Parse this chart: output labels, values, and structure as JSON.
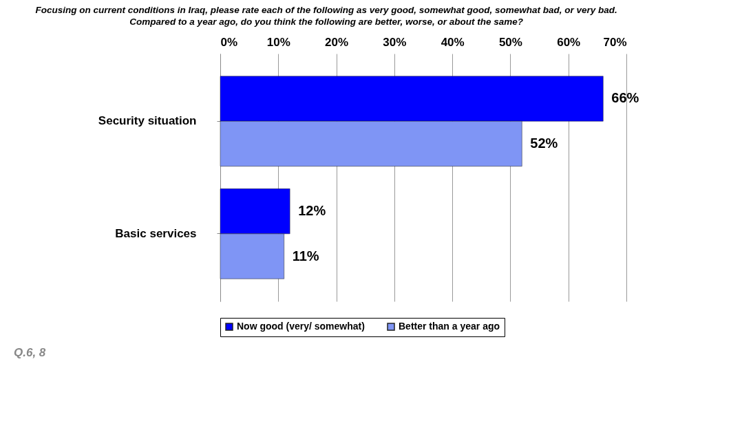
{
  "chart_data": {
    "type": "bar",
    "orientation": "horizontal",
    "title": "Focusing on current conditions in Iraq, please rate each of the following as very good, somewhat good, somewhat bad, or very bad.",
    "subtitle": "Compared to a year ago, do you think the following are better, worse, or about the same?",
    "categories": [
      "Security situation",
      "Basic services"
    ],
    "series": [
      {
        "name": "Now good (very/ somewhat)",
        "color": "#0000ff",
        "values": [
          66,
          12
        ],
        "value_labels": [
          "66%",
          "12%"
        ]
      },
      {
        "name": "Better than a year ago",
        "color": "#7f95f5",
        "values": [
          52,
          11
        ],
        "value_labels": [
          "52%",
          "11%"
        ]
      }
    ],
    "xlim": [
      0,
      70
    ],
    "xticks": [
      {
        "value": 0,
        "label": "0%"
      },
      {
        "value": 10,
        "label": "10%"
      },
      {
        "value": 20,
        "label": "20%"
      },
      {
        "value": 30,
        "label": "30%"
      },
      {
        "value": 40,
        "label": "40%"
      },
      {
        "value": 50,
        "label": "50%"
      },
      {
        "value": 60,
        "label": "60%"
      },
      {
        "value": 70,
        "label": "70%"
      }
    ],
    "grid": "x",
    "legend": "bottom",
    "annotations": [
      "Q.6, 8"
    ]
  }
}
